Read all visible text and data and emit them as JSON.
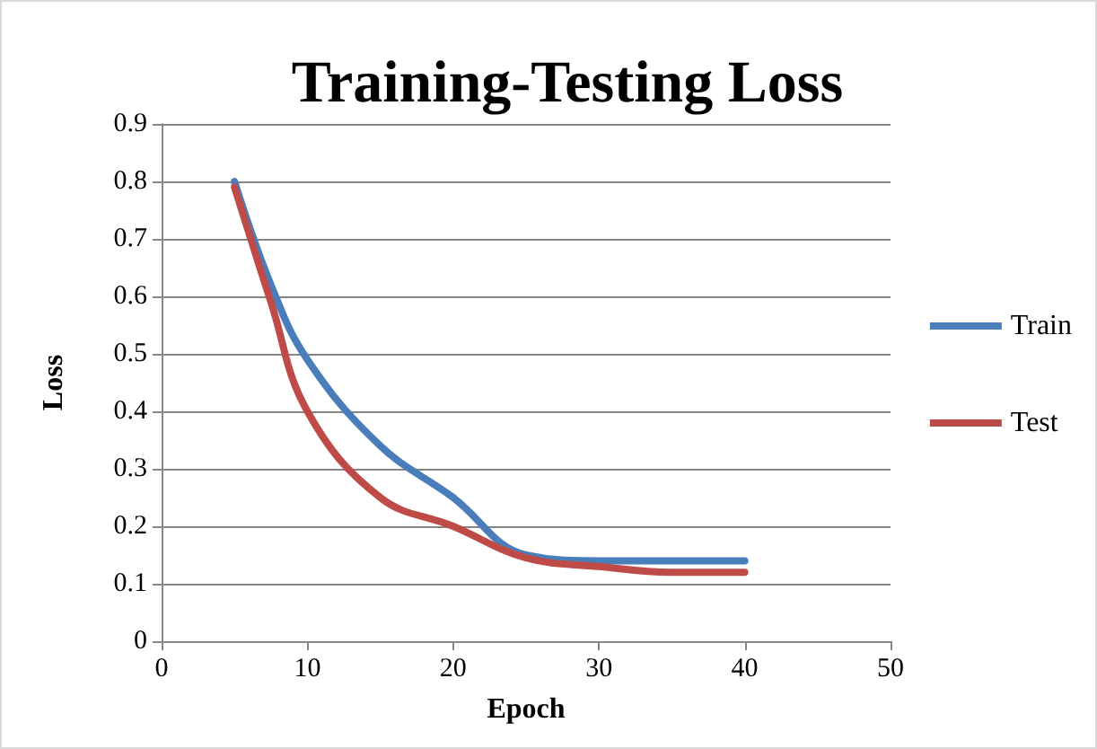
{
  "chart_data": {
    "type": "line",
    "title": "Training-Testing Loss",
    "xlabel": "Epoch",
    "ylabel": "Loss",
    "x": [
      5,
      7.5,
      10,
      15,
      20,
      25,
      30,
      35,
      40
    ],
    "series": [
      {
        "name": "Train",
        "color": "#4a7ebb",
        "values": [
          0.8,
          0.62,
          0.49,
          0.34,
          0.25,
          0.15,
          0.14,
          0.14,
          0.14
        ]
      },
      {
        "name": "Test",
        "color": "#be4b48",
        "values": [
          0.79,
          0.59,
          0.4,
          0.25,
          0.2,
          0.145,
          0.13,
          0.12,
          0.12
        ]
      }
    ],
    "xlim": [
      0,
      50
    ],
    "xticks": [
      0,
      10,
      20,
      30,
      40,
      50
    ],
    "ylim": [
      0,
      0.9
    ],
    "yticks": [
      0,
      0.1,
      0.2,
      0.3,
      0.4,
      0.5,
      0.6,
      0.7,
      0.8,
      0.9
    ],
    "grid": "y",
    "legend": "right",
    "marker": "none",
    "line_style": "solid"
  }
}
